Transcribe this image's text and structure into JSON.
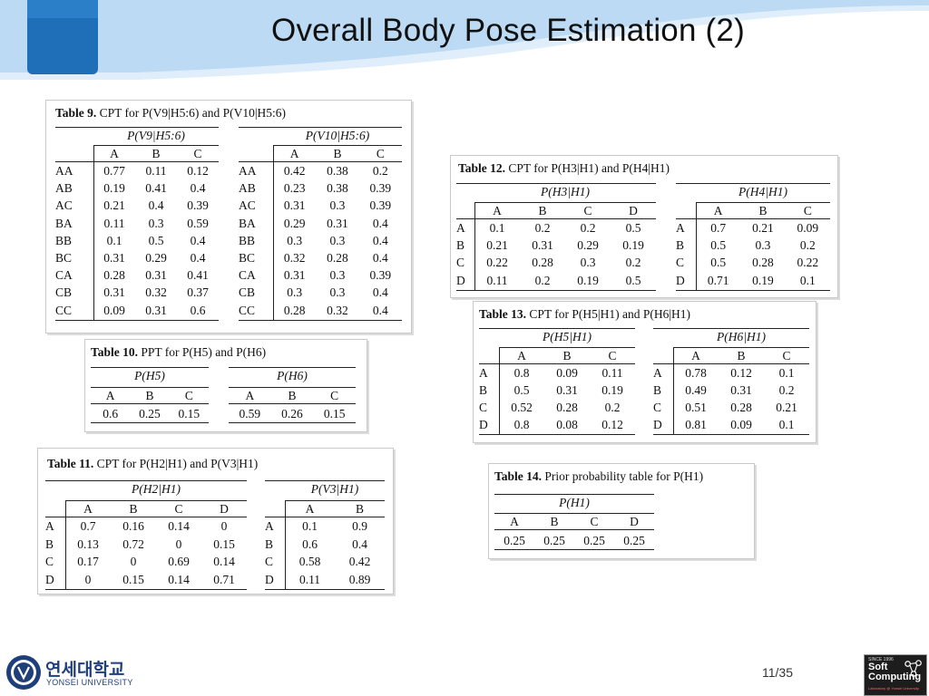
{
  "slide": {
    "title": "Overall Body Pose Estimation (2)",
    "page": "11/35"
  },
  "footer": {
    "university_kr": "연세대학교",
    "university_en": "YONSEI UNIVERSITY",
    "lab_logo": {
      "line1": "SINCE 1996",
      "line2a": "Soft",
      "line2b": "Computing",
      "line3": "Laboratory @ Yonsei University"
    }
  },
  "colors": {
    "banner": "#1e6fb8",
    "banner_light": "#7fb4e0"
  },
  "tables": {
    "t9": {
      "caption_label": "Table 9.",
      "caption_text": "CPT for P(V9|H5:6) and P(V10|H5:6)",
      "left": {
        "header": "P(V9|H5:6)",
        "cols": [
          "A",
          "B",
          "C"
        ],
        "rows": [
          {
            "k": "AA",
            "v": [
              "0.77",
              "0.11",
              "0.12"
            ]
          },
          {
            "k": "AB",
            "v": [
              "0.19",
              "0.41",
              "0.4"
            ]
          },
          {
            "k": "AC",
            "v": [
              "0.21",
              "0.4",
              "0.39"
            ]
          },
          {
            "k": "BA",
            "v": [
              "0.11",
              "0.3",
              "0.59"
            ]
          },
          {
            "k": "BB",
            "v": [
              "0.1",
              "0.5",
              "0.4"
            ]
          },
          {
            "k": "BC",
            "v": [
              "0.31",
              "0.29",
              "0.4"
            ]
          },
          {
            "k": "CA",
            "v": [
              "0.28",
              "0.31",
              "0.41"
            ]
          },
          {
            "k": "CB",
            "v": [
              "0.31",
              "0.32",
              "0.37"
            ]
          },
          {
            "k": "CC",
            "v": [
              "0.09",
              "0.31",
              "0.6"
            ]
          }
        ]
      },
      "right": {
        "header": "P(V10|H5:6)",
        "cols": [
          "A",
          "B",
          "C"
        ],
        "rows": [
          {
            "k": "AA",
            "v": [
              "0.42",
              "0.38",
              "0.2"
            ]
          },
          {
            "k": "AB",
            "v": [
              "0.23",
              "0.38",
              "0.39"
            ]
          },
          {
            "k": "AC",
            "v": [
              "0.31",
              "0.3",
              "0.39"
            ]
          },
          {
            "k": "BA",
            "v": [
              "0.29",
              "0.31",
              "0.4"
            ]
          },
          {
            "k": "BB",
            "v": [
              "0.3",
              "0.3",
              "0.4"
            ]
          },
          {
            "k": "BC",
            "v": [
              "0.32",
              "0.28",
              "0.4"
            ]
          },
          {
            "k": "CA",
            "v": [
              "0.31",
              "0.3",
              "0.39"
            ]
          },
          {
            "k": "CB",
            "v": [
              "0.3",
              "0.3",
              "0.4"
            ]
          },
          {
            "k": "CC",
            "v": [
              "0.28",
              "0.32",
              "0.4"
            ]
          }
        ]
      }
    },
    "t10": {
      "caption_label": "Table 10.",
      "caption_text": "PPT for P(H5) and P(H6)",
      "left": {
        "header": "P(H5)",
        "cols": [
          "A",
          "B",
          "C"
        ],
        "rows": [
          {
            "k": "",
            "v": [
              "0.6",
              "0.25",
              "0.15"
            ]
          }
        ]
      },
      "right": {
        "header": "P(H6)",
        "cols": [
          "A",
          "B",
          "C"
        ],
        "rows": [
          {
            "k": "",
            "v": [
              "0.59",
              "0.26",
              "0.15"
            ]
          }
        ]
      }
    },
    "t11": {
      "caption_label": "Table 11.",
      "caption_text": "CPT for P(H2|H1) and P(V3|H1)",
      "left": {
        "header": "P(H2|H1)",
        "cols": [
          "A",
          "B",
          "C",
          "D"
        ],
        "rows": [
          {
            "k": "A",
            "v": [
              "0.7",
              "0.16",
              "0.14",
              "0"
            ]
          },
          {
            "k": "B",
            "v": [
              "0.13",
              "0.72",
              "0",
              "0.15"
            ]
          },
          {
            "k": "C",
            "v": [
              "0.17",
              "0",
              "0.69",
              "0.14"
            ]
          },
          {
            "k": "D",
            "v": [
              "0",
              "0.15",
              "0.14",
              "0.71"
            ]
          }
        ]
      },
      "right": {
        "header": "P(V3|H1)",
        "cols": [
          "A",
          "B"
        ],
        "rows": [
          {
            "k": "A",
            "v": [
              "0.1",
              "0.9"
            ]
          },
          {
            "k": "B",
            "v": [
              "0.6",
              "0.4"
            ]
          },
          {
            "k": "C",
            "v": [
              "0.58",
              "0.42"
            ]
          },
          {
            "k": "D",
            "v": [
              "0.11",
              "0.89"
            ]
          }
        ]
      }
    },
    "t12": {
      "caption_label": "Table 12.",
      "caption_text": "CPT for P(H3|H1) and P(H4|H1)",
      "left": {
        "header": "P(H3|H1)",
        "cols": [
          "A",
          "B",
          "C",
          "D"
        ],
        "rows": [
          {
            "k": "A",
            "v": [
              "0.1",
              "0.2",
              "0.2",
              "0.5"
            ]
          },
          {
            "k": "B",
            "v": [
              "0.21",
              "0.31",
              "0.29",
              "0.19"
            ]
          },
          {
            "k": "C",
            "v": [
              "0.22",
              "0.28",
              "0.3",
              "0.2"
            ]
          },
          {
            "k": "D",
            "v": [
              "0.11",
              "0.2",
              "0.19",
              "0.5"
            ]
          }
        ]
      },
      "right": {
        "header": "P(H4|H1)",
        "cols": [
          "A",
          "B",
          "C"
        ],
        "rows": [
          {
            "k": "A",
            "v": [
              "0.7",
              "0.21",
              "0.09"
            ]
          },
          {
            "k": "B",
            "v": [
              "0.5",
              "0.3",
              "0.2"
            ]
          },
          {
            "k": "C",
            "v": [
              "0.5",
              "0.28",
              "0.22"
            ]
          },
          {
            "k": "D",
            "v": [
              "0.71",
              "0.19",
              "0.1"
            ]
          }
        ]
      }
    },
    "t13": {
      "caption_label": "Table 13.",
      "caption_text": "CPT for P(H5|H1) and P(H6|H1)",
      "left": {
        "header": "P(H5|H1)",
        "cols": [
          "A",
          "B",
          "C"
        ],
        "rows": [
          {
            "k": "A",
            "v": [
              "0.8",
              "0.09",
              "0.11"
            ]
          },
          {
            "k": "B",
            "v": [
              "0.5",
              "0.31",
              "0.19"
            ]
          },
          {
            "k": "C",
            "v": [
              "0.52",
              "0.28",
              "0.2"
            ]
          },
          {
            "k": "D",
            "v": [
              "0.8",
              "0.08",
              "0.12"
            ]
          }
        ]
      },
      "right": {
        "header": "P(H6|H1)",
        "cols": [
          "A",
          "B",
          "C"
        ],
        "rows": [
          {
            "k": "A",
            "v": [
              "0.78",
              "0.12",
              "0.1"
            ]
          },
          {
            "k": "B",
            "v": [
              "0.49",
              "0.31",
              "0.2"
            ]
          },
          {
            "k": "C",
            "v": [
              "0.51",
              "0.28",
              "0.21"
            ]
          },
          {
            "k": "D",
            "v": [
              "0.81",
              "0.09",
              "0.1"
            ]
          }
        ]
      }
    },
    "t14": {
      "caption_label": "Table 14.",
      "caption_text": "Prior probability table for P(H1)",
      "left": {
        "header": "P(H1)",
        "cols": [
          "A",
          "B",
          "C",
          "D"
        ],
        "rows": [
          {
            "k": "",
            "v": [
              "0.25",
              "0.25",
              "0.25",
              "0.25"
            ]
          }
        ]
      }
    }
  }
}
